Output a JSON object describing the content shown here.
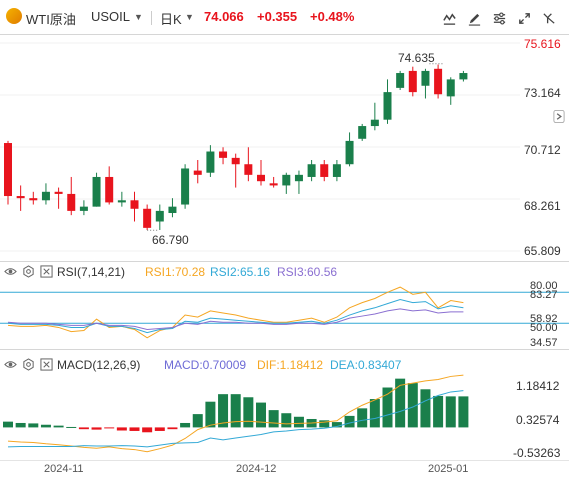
{
  "header": {
    "instrument_name": "WTI原油",
    "symbol": "USOIL",
    "period": "日K",
    "price": "74.066",
    "change": "+0.355",
    "change_pct": "+0.48%",
    "icons": [
      "chart-type-icon",
      "draw-tool-icon",
      "settings-icon",
      "fullscreen-icon",
      "grid-icon"
    ]
  },
  "colors": {
    "up": "#e8141d",
    "down": "#1a7f4b",
    "price_label": "#e8141d",
    "rsi1": "#f5a623",
    "rsi2": "#33a9d6",
    "rsi3": "#8a6fd1",
    "macd": "#6e6bd6",
    "dif": "#f5a623",
    "dea": "#33a9d6"
  },
  "price_axis": {
    "labels": [
      "75.616",
      "73.164",
      "70.712",
      "68.261",
      "65.809"
    ],
    "min": 65.809,
    "max": 75.616
  },
  "annotations": {
    "high": "74.635",
    "low": "66.790"
  },
  "rsi": {
    "title": "RSI(7,14,21)",
    "rsi1_label": "RSI1:70.28",
    "rsi2_label": "RSI2:65.16",
    "rsi3_label": "RSI3:60.56",
    "axis_labels": [
      "80.00",
      "83.27",
      "58.92",
      "50.00",
      "34.57"
    ],
    "levels": [
      80,
      50
    ]
  },
  "macd": {
    "title": "MACD(12,26,9)",
    "macd_label": "MACD:0.70009",
    "dif_label": "DIF:1.18412",
    "dea_label": "DEA:0.83407",
    "axis_labels": [
      "1.18412",
      "0.32574",
      "-0.53263"
    ]
  },
  "x_axis": {
    "labels": [
      "2024-11",
      "2024-12",
      "2025-01"
    ]
  },
  "chart_data": {
    "type": "candlestick",
    "candles": [
      {
        "o": 70.9,
        "c": 68.4,
        "h": 71.0,
        "l": 68.0
      },
      {
        "o": 68.4,
        "c": 68.3,
        "h": 68.9,
        "l": 67.7
      },
      {
        "o": 68.3,
        "c": 68.2,
        "h": 68.6,
        "l": 68.0
      },
      {
        "o": 68.2,
        "c": 68.6,
        "h": 69.0,
        "l": 68.0
      },
      {
        "o": 68.6,
        "c": 68.5,
        "h": 68.8,
        "l": 67.8
      },
      {
        "o": 68.5,
        "c": 67.7,
        "h": 69.3,
        "l": 67.5
      },
      {
        "o": 67.7,
        "c": 67.9,
        "h": 68.2,
        "l": 67.5
      },
      {
        "o": 67.9,
        "c": 69.3,
        "h": 69.5,
        "l": 67.9
      },
      {
        "o": 69.3,
        "c": 68.1,
        "h": 69.8,
        "l": 68.0
      },
      {
        "o": 68.1,
        "c": 68.2,
        "h": 68.6,
        "l": 67.9
      },
      {
        "o": 68.2,
        "c": 67.8,
        "h": 68.6,
        "l": 67.2
      },
      {
        "o": 67.8,
        "c": 66.9,
        "h": 68.0,
        "l": 66.8
      },
      {
        "o": 67.2,
        "c": 67.7,
        "h": 68.0,
        "l": 66.8
      },
      {
        "o": 67.6,
        "c": 67.9,
        "h": 68.3,
        "l": 67.4
      },
      {
        "o": 68.0,
        "c": 69.7,
        "h": 69.9,
        "l": 67.8
      },
      {
        "o": 69.6,
        "c": 69.4,
        "h": 70.1,
        "l": 69.0
      },
      {
        "o": 69.5,
        "c": 70.5,
        "h": 70.8,
        "l": 69.3
      },
      {
        "o": 70.5,
        "c": 70.2,
        "h": 70.7,
        "l": 69.9
      },
      {
        "o": 70.2,
        "c": 69.9,
        "h": 70.4,
        "l": 68.8
      },
      {
        "o": 69.9,
        "c": 69.4,
        "h": 70.7,
        "l": 69.1
      },
      {
        "o": 69.4,
        "c": 69.1,
        "h": 70.1,
        "l": 68.9
      },
      {
        "o": 69.0,
        "c": 68.9,
        "h": 69.3,
        "l": 68.8
      },
      {
        "o": 68.9,
        "c": 69.4,
        "h": 69.5,
        "l": 68.5
      },
      {
        "o": 69.1,
        "c": 69.4,
        "h": 69.6,
        "l": 68.5
      },
      {
        "o": 69.3,
        "c": 69.9,
        "h": 70.1,
        "l": 69.1
      },
      {
        "o": 69.9,
        "c": 69.3,
        "h": 70.1,
        "l": 69.1
      },
      {
        "o": 69.3,
        "c": 69.9,
        "h": 70.1,
        "l": 69.1
      },
      {
        "o": 69.9,
        "c": 71.0,
        "h": 71.4,
        "l": 69.8
      },
      {
        "o": 71.1,
        "c": 71.7,
        "h": 71.8,
        "l": 71.0
      },
      {
        "o": 71.7,
        "c": 72.0,
        "h": 72.8,
        "l": 71.5
      },
      {
        "o": 72.0,
        "c": 73.3,
        "h": 73.9,
        "l": 71.8
      },
      {
        "o": 73.5,
        "c": 74.2,
        "h": 74.3,
        "l": 73.4
      },
      {
        "o": 74.3,
        "c": 73.3,
        "h": 74.5,
        "l": 73.1
      },
      {
        "o": 73.6,
        "c": 74.3,
        "h": 74.4,
        "l": 73.0
      },
      {
        "o": 74.4,
        "c": 73.2,
        "h": 74.6,
        "l": 73.0
      },
      {
        "o": 73.1,
        "c": 73.9,
        "h": 74.0,
        "l": 72.7
      },
      {
        "o": 73.9,
        "c": 74.2,
        "h": 74.3,
        "l": 73.8
      }
    ],
    "rsi_series": [
      {
        "name": "RSI1",
        "values": [
          48,
          47,
          47,
          48,
          46,
          42,
          43,
          54,
          46,
          47,
          44,
          36,
          43,
          46,
          58,
          56,
          62,
          60,
          58,
          55,
          53,
          51,
          51,
          53,
          55,
          51,
          56,
          65,
          70,
          74,
          80,
          85,
          78,
          80,
          65,
          72,
          70
        ]
      },
      {
        "name": "RSI2",
        "values": [
          50,
          49,
          49,
          49,
          48,
          46,
          46,
          50,
          47,
          47,
          45,
          41,
          44,
          45,
          52,
          51,
          55,
          54,
          53,
          52,
          51,
          50,
          50,
          51,
          52,
          50,
          53,
          58,
          62,
          65,
          69,
          73,
          70,
          71,
          64,
          67,
          65
        ]
      },
      {
        "name": "RSI3",
        "values": [
          51,
          50,
          50,
          50,
          49,
          48,
          48,
          50,
          48,
          48,
          47,
          44,
          45,
          46,
          50,
          49,
          52,
          51,
          51,
          50,
          50,
          49,
          49,
          50,
          50,
          49,
          51,
          55,
          57,
          59,
          62,
          64,
          62,
          63,
          60,
          61,
          61
        ]
      }
    ],
    "macd_histogram": [
      0.13,
      0.1,
      0.09,
      0.06,
      0.04,
      0.01,
      -0.04,
      -0.05,
      -0.02,
      -0.07,
      -0.08,
      -0.11,
      -0.08,
      -0.04,
      0.1,
      0.3,
      0.58,
      0.75,
      0.75,
      0.68,
      0.56,
      0.39,
      0.32,
      0.24,
      0.19,
      0.16,
      0.12,
      0.26,
      0.43,
      0.64,
      0.9,
      1.1,
      1.0,
      0.86,
      0.71,
      0.7,
      0.7
    ],
    "dif_values": [
      -0.31,
      -0.33,
      -0.34,
      -0.37,
      -0.39,
      -0.42,
      -0.45,
      -0.47,
      -0.44,
      -0.48,
      -0.5,
      -0.55,
      -0.48,
      -0.4,
      -0.25,
      -0.05,
      0.05,
      0.1,
      0.13,
      0.14,
      0.12,
      0.1,
      0.08,
      0.09,
      0.1,
      0.12,
      0.15,
      0.35,
      0.5,
      0.62,
      0.75,
      0.95,
      1.0,
      1.05,
      1.08,
      1.15,
      1.18
    ],
    "dea_values": [
      -0.44,
      -0.43,
      -0.43,
      -0.43,
      -0.43,
      -0.43,
      -0.41,
      -0.42,
      -0.42,
      -0.41,
      -0.42,
      -0.44,
      -0.4,
      -0.36,
      -0.35,
      -0.34,
      -0.24,
      -0.28,
      -0.24,
      -0.2,
      -0.16,
      -0.1,
      -0.08,
      -0.05,
      -0.04,
      -0.02,
      0.02,
      0.1,
      0.16,
      0.2,
      0.28,
      0.36,
      0.46,
      0.6,
      0.72,
      0.8,
      0.83
    ]
  }
}
